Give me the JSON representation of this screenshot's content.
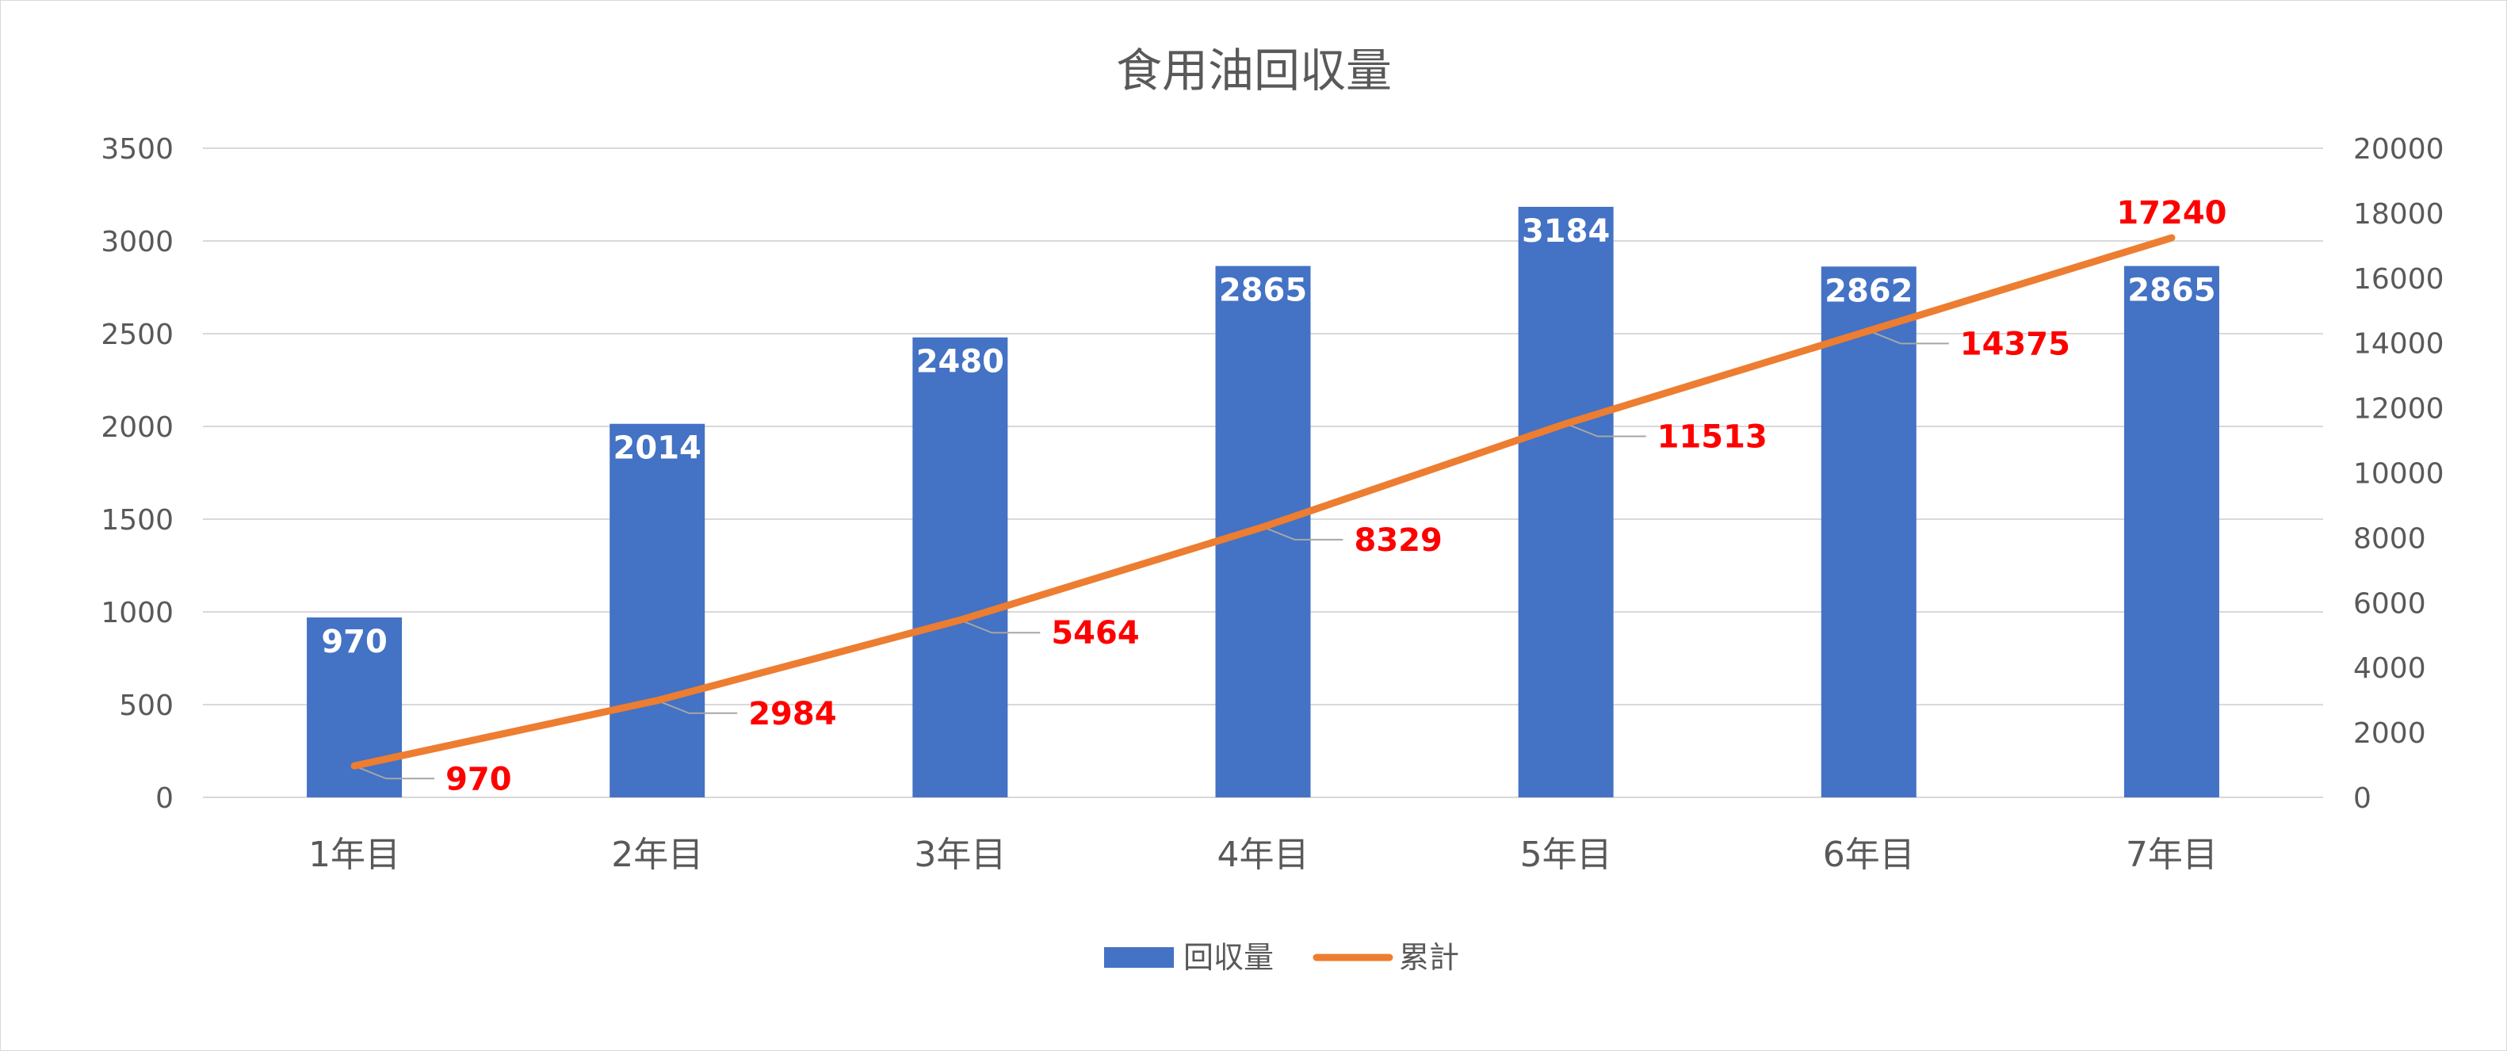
{
  "chart_data": {
    "type": "bar",
    "title": "食用油回収量",
    "categories": [
      "1年目",
      "2年目",
      "3年目",
      "4年目",
      "5年目",
      "6年目",
      "7年目"
    ],
    "series": [
      {
        "name": "回収量",
        "type": "bar",
        "axis": "left",
        "color": "#4472C4",
        "label_color": "#FFFFFF",
        "values": [
          970,
          2014,
          2480,
          2865,
          3184,
          2862,
          2865
        ]
      },
      {
        "name": "累計",
        "type": "line",
        "axis": "right",
        "color": "#ED7D31",
        "label_color": "#FF0000",
        "values": [
          970,
          2984,
          5464,
          8329,
          11513,
          14375,
          17240
        ]
      }
    ],
    "left_axis": {
      "ylim": [
        0,
        3500
      ],
      "ticks": [
        "0",
        "500",
        "1000",
        "1500",
        "2000",
        "2500",
        "3000",
        "3500"
      ]
    },
    "right_axis": {
      "ylim": [
        0,
        20000
      ],
      "ticks": [
        "0",
        "2000",
        "4000",
        "6000",
        "8000",
        "10000",
        "12000",
        "14000",
        "16000",
        "18000",
        "20000"
      ]
    },
    "grid": true,
    "legend": "bottom",
    "gridline_color": "#D9D9D9",
    "text_color": "#595959"
  }
}
